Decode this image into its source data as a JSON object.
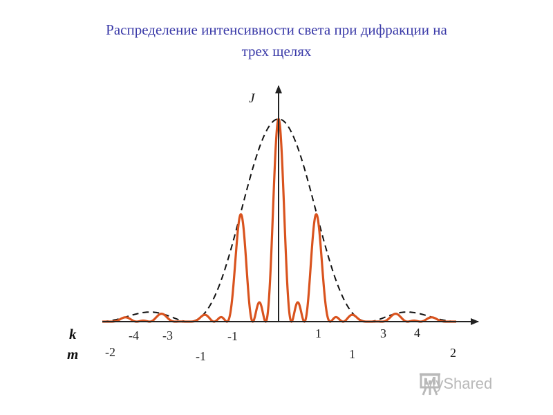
{
  "title": {
    "line1": "Распределение интенсивности света при дифракции на",
    "line2": "трех щелях"
  },
  "axis": {
    "y_label": "J",
    "k_label": "k",
    "m_label": "m"
  },
  "k_ticks": [
    "-4",
    "-3",
    "-1",
    "1",
    "3",
    "4"
  ],
  "m_ticks": [
    "-2",
    "-1",
    "1",
    "2"
  ],
  "watermark": {
    "text": "MyShared",
    "icon": "presentation-board-icon"
  },
  "colors": {
    "curve": "#d9531e",
    "envelope": "#111111",
    "axis": "#222222",
    "title": "#3a3aa8"
  }
}
